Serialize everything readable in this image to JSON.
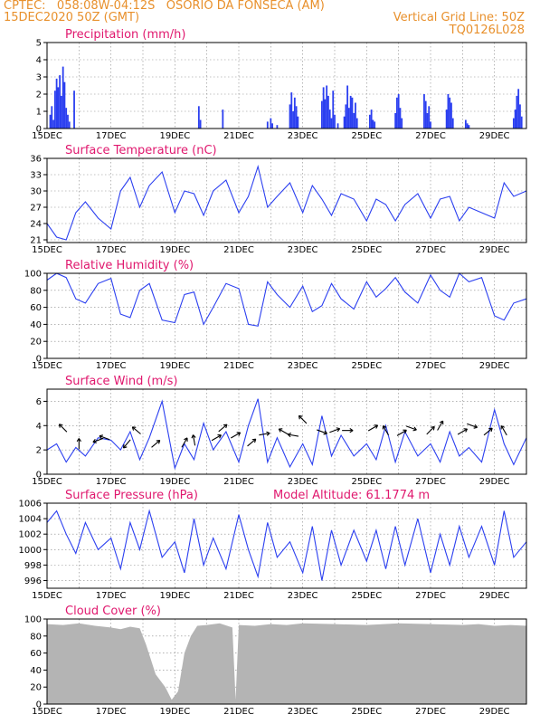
{
  "header": {
    "line1_left": "CPTEC:   058:08W-04:12S   OSORIO DA FONSECA (AM)",
    "line2_left": "15DEC2020 50Z (GMT)",
    "line2_right": "Vertical Grid Line: 50Z",
    "line3_right": "TQ0126L028"
  },
  "model_altitude": "Model Altitude: 61.1774 m",
  "colors": {
    "header": "#e8902c",
    "title": "#e0186e",
    "series": "#2b3ff0",
    "cloud": "#b4b4b4"
  },
  "x_axis": {
    "labels": [
      "15DEC",
      "17DEC",
      "19DEC",
      "21DEC",
      "23DEC",
      "25DEC",
      "27DEC",
      "29DEC"
    ],
    "range_days": [
      15,
      30
    ],
    "grid_interval_days": 1
  },
  "chart_data": [
    {
      "type": "bar",
      "title": "Precipitation (mm/h)",
      "ylim": [
        0,
        5
      ],
      "yticks": [
        "0",
        "1",
        "2",
        "3",
        "4",
        "5"
      ],
      "x": [
        15.1,
        15.15,
        15.2,
        15.25,
        15.3,
        15.35,
        15.4,
        15.45,
        15.5,
        15.55,
        15.6,
        15.65,
        15.7,
        15.85,
        19.75,
        19.8,
        20.5,
        21.9,
        22.0,
        22.05,
        22.2,
        22.6,
        22.65,
        22.7,
        22.75,
        22.8,
        22.85,
        23.6,
        23.65,
        23.7,
        23.75,
        23.8,
        23.85,
        23.9,
        23.95,
        24.0,
        24.1,
        24.3,
        24.35,
        24.4,
        24.45,
        24.5,
        24.55,
        24.6,
        24.65,
        24.7,
        25.1,
        25.15,
        25.2,
        25.25,
        25.9,
        25.95,
        26.0,
        26.05,
        26.1,
        26.8,
        26.85,
        26.9,
        26.95,
        27.0,
        27.5,
        27.55,
        27.6,
        27.65,
        27.7,
        28.1,
        28.15,
        28.2,
        29.6,
        29.65,
        29.7,
        29.75,
        29.8,
        29.85
      ],
      "values": [
        0.8,
        1.3,
        0.5,
        2.2,
        2.9,
        2.4,
        3.1,
        1.9,
        3.6,
        2.7,
        1.2,
        0.8,
        0.4,
        2.2,
        1.3,
        0.5,
        1.1,
        0.4,
        0.6,
        0.3,
        0.2,
        1.4,
        2.1,
        1.0,
        1.8,
        1.3,
        0.7,
        1.6,
        2.4,
        1.7,
        2.5,
        1.9,
        1.1,
        0.6,
        2.2,
        0.8,
        0.3,
        0.7,
        1.4,
        2.5,
        1.2,
        1.9,
        1.8,
        0.9,
        1.5,
        0.6,
        0.8,
        1.1,
        0.5,
        0.4,
        0.9,
        1.8,
        2.0,
        1.2,
        0.6,
        2.0,
        1.6,
        0.9,
        1.3,
        0.4,
        1.1,
        2.0,
        1.8,
        1.5,
        0.6,
        0.5,
        0.3,
        0.2,
        0.6,
        1.1,
        1.9,
        2.3,
        1.4,
        0.7
      ]
    },
    {
      "type": "line",
      "title": "Surface Temperature (nC)",
      "ylim": [
        20.5,
        36
      ],
      "yticks": [
        "21",
        "24",
        "27",
        "30",
        "33",
        "36"
      ],
      "x": [
        15.0,
        15.3,
        15.6,
        15.9,
        16.2,
        16.6,
        17.0,
        17.3,
        17.6,
        17.9,
        18.2,
        18.6,
        19.0,
        19.3,
        19.6,
        19.9,
        20.2,
        20.6,
        21.0,
        21.3,
        21.6,
        21.9,
        22.2,
        22.6,
        23.0,
        23.3,
        23.6,
        23.9,
        24.2,
        24.6,
        25.0,
        25.3,
        25.6,
        25.9,
        26.2,
        26.6,
        27.0,
        27.3,
        27.6,
        27.9,
        28.2,
        28.6,
        29.0,
        29.3,
        29.6,
        30.0
      ],
      "values": [
        24,
        21.5,
        21,
        26,
        28,
        25,
        23,
        30,
        32.5,
        27,
        31,
        33.5,
        26,
        30,
        29.5,
        25.5,
        30,
        32,
        26,
        29,
        34.5,
        27,
        29,
        31.5,
        26,
        31,
        28.5,
        25.5,
        29.5,
        28.5,
        24.5,
        28.5,
        27.5,
        24.5,
        27.5,
        29.5,
        25,
        28.5,
        29,
        24.5,
        27,
        26,
        25,
        31.5,
        29,
        30
      ]
    },
    {
      "type": "line",
      "title": "Relative Humidity (%)",
      "ylim": [
        0,
        100
      ],
      "yticks": [
        "0",
        "20",
        "40",
        "60",
        "80",
        "100"
      ],
      "x": [
        15.0,
        15.3,
        15.6,
        15.9,
        16.2,
        16.6,
        17.0,
        17.3,
        17.6,
        17.9,
        18.2,
        18.6,
        19.0,
        19.3,
        19.6,
        19.9,
        20.2,
        20.6,
        21.0,
        21.3,
        21.6,
        21.9,
        22.2,
        22.6,
        23.0,
        23.3,
        23.6,
        23.9,
        24.2,
        24.6,
        25.0,
        25.3,
        25.6,
        25.9,
        26.2,
        26.6,
        27.0,
        27.3,
        27.6,
        27.9,
        28.2,
        28.6,
        29.0,
        29.3,
        29.6,
        30.0
      ],
      "values": [
        92,
        100,
        95,
        70,
        65,
        88,
        94,
        52,
        48,
        80,
        88,
        45,
        42,
        75,
        78,
        40,
        60,
        88,
        82,
        40,
        38,
        90,
        75,
        60,
        85,
        55,
        62,
        88,
        70,
        58,
        90,
        72,
        82,
        95,
        78,
        65,
        98,
        80,
        72,
        100,
        90,
        95,
        50,
        45,
        65,
        70
      ]
    },
    {
      "type": "line",
      "title": "Surface Wind (m/s)",
      "ylim": [
        0,
        7
      ],
      "yticks": [
        "0",
        "2",
        "4",
        "6"
      ],
      "x": [
        15.0,
        15.3,
        15.6,
        15.9,
        16.2,
        16.6,
        17.0,
        17.3,
        17.6,
        17.9,
        18.2,
        18.6,
        19.0,
        19.3,
        19.6,
        19.9,
        20.2,
        20.6,
        21.0,
        21.3,
        21.6,
        21.9,
        22.2,
        22.6,
        23.0,
        23.3,
        23.6,
        23.9,
        24.2,
        24.6,
        25.0,
        25.3,
        25.6,
        25.9,
        26.2,
        26.6,
        27.0,
        27.3,
        27.6,
        27.9,
        28.2,
        28.6,
        29.0,
        29.3,
        29.6,
        30.0
      ],
      "values": [
        2,
        2.5,
        1,
        2.2,
        1.5,
        3,
        2.8,
        2,
        3.5,
        1.2,
        3,
        6,
        0.5,
        2.5,
        1.2,
        4.2,
        2,
        3.5,
        1,
        4,
        6.2,
        1,
        3,
        0.6,
        2.5,
        0.8,
        4.8,
        1.5,
        3.2,
        1.5,
        2.5,
        1.2,
        4,
        1,
        3.5,
        1.5,
        2.5,
        1,
        3.5,
        1.5,
        2.2,
        1,
        5.3,
        2.5,
        0.8,
        3
      ]
    },
    {
      "type": "line",
      "title": "Surface Pressure (hPa)",
      "ylim": [
        995,
        1006
      ],
      "yticks": [
        "996",
        "998",
        "1000",
        "1002",
        "1004",
        "1006"
      ],
      "x": [
        15.0,
        15.3,
        15.6,
        15.9,
        16.2,
        16.6,
        17.0,
        17.3,
        17.6,
        17.9,
        18.2,
        18.6,
        19.0,
        19.3,
        19.6,
        19.9,
        20.2,
        20.6,
        21.0,
        21.3,
        21.6,
        21.9,
        22.2,
        22.6,
        23.0,
        23.3,
        23.6,
        23.9,
        24.2,
        24.6,
        25.0,
        25.3,
        25.6,
        25.9,
        26.2,
        26.6,
        27.0,
        27.3,
        27.6,
        27.9,
        28.2,
        28.6,
        29.0,
        29.3,
        29.6,
        30.0
      ],
      "values": [
        1003.5,
        1005,
        1002,
        999.5,
        1003.5,
        1000,
        1001.5,
        997.5,
        1003.5,
        1000,
        1005,
        999,
        1001,
        997,
        1004,
        998,
        1001.5,
        997.5,
        1004.5,
        1000,
        996.5,
        1003.5,
        999,
        1001,
        997,
        1003,
        996,
        1002.5,
        998,
        1002.5,
        998.5,
        1002.5,
        997.5,
        1003,
        998,
        1004,
        997,
        1002,
        998,
        1003,
        999,
        1003,
        998,
        1005,
        999,
        1001
      ]
    },
    {
      "type": "area",
      "title": "Cloud Cover (%)",
      "ylim": [
        0,
        100
      ],
      "yticks": [
        "0",
        "20",
        "40",
        "60",
        "80",
        "100"
      ],
      "x": [
        15.0,
        15.5,
        16.0,
        16.5,
        17.0,
        17.3,
        17.6,
        17.9,
        18.1,
        18.4,
        18.7,
        18.9,
        19.1,
        19.3,
        19.5,
        19.7,
        20.0,
        20.4,
        20.8,
        20.9,
        21.0,
        21.5,
        22.0,
        22.5,
        23.0,
        24.0,
        25.0,
        26.0,
        27.0,
        28.0,
        28.5,
        29.0,
        29.5,
        30.0
      ],
      "values": [
        94,
        93,
        95,
        92,
        90,
        88,
        91,
        89,
        70,
        35,
        20,
        5,
        15,
        60,
        80,
        92,
        93,
        95,
        90,
        5,
        93,
        92,
        94,
        93,
        95,
        94,
        93,
        95,
        94,
        93,
        94,
        92,
        93,
        92
      ]
    }
  ],
  "wind_arrows": [
    {
      "day": 15.5,
      "value": 3.8,
      "dir_deg": 135
    },
    {
      "day": 16.0,
      "value": 2.5,
      "dir_deg": 90
    },
    {
      "day": 16.6,
      "value": 2.8,
      "dir_deg": 200
    },
    {
      "day": 16.8,
      "value": 3.0,
      "dir_deg": 160
    },
    {
      "day": 17.5,
      "value": 2.5,
      "dir_deg": 230
    },
    {
      "day": 17.8,
      "value": 3.6,
      "dir_deg": 140
    },
    {
      "day": 18.4,
      "value": 2.5,
      "dir_deg": 40
    },
    {
      "day": 19.3,
      "value": 2.6,
      "dir_deg": 60
    },
    {
      "day": 19.6,
      "value": 2.8,
      "dir_deg": 100
    },
    {
      "day": 20.3,
      "value": 3.0,
      "dir_deg": 30
    },
    {
      "day": 20.5,
      "value": 3.8,
      "dir_deg": 40
    },
    {
      "day": 20.9,
      "value": 3.2,
      "dir_deg": 30
    },
    {
      "day": 21.4,
      "value": 2.6,
      "dir_deg": 40
    },
    {
      "day": 21.8,
      "value": 3.3,
      "dir_deg": 10
    },
    {
      "day": 22.4,
      "value": 3.5,
      "dir_deg": 150
    },
    {
      "day": 22.7,
      "value": 3.2,
      "dir_deg": 170
    },
    {
      "day": 23.0,
      "value": 4.5,
      "dir_deg": 135
    },
    {
      "day": 23.6,
      "value": 3.5,
      "dir_deg": 340
    },
    {
      "day": 24.0,
      "value": 3.6,
      "dir_deg": 20
    },
    {
      "day": 24.4,
      "value": 3.6,
      "dir_deg": 0
    },
    {
      "day": 25.2,
      "value": 3.8,
      "dir_deg": 30
    },
    {
      "day": 25.6,
      "value": 3.6,
      "dir_deg": 120
    },
    {
      "day": 26.1,
      "value": 3.4,
      "dir_deg": 30
    },
    {
      "day": 26.4,
      "value": 3.8,
      "dir_deg": 340
    },
    {
      "day": 27.0,
      "value": 3.6,
      "dir_deg": 45
    },
    {
      "day": 27.3,
      "value": 4.0,
      "dir_deg": 60
    },
    {
      "day": 28.0,
      "value": 3.5,
      "dir_deg": 30
    },
    {
      "day": 28.3,
      "value": 4.0,
      "dir_deg": 340
    },
    {
      "day": 28.8,
      "value": 3.5,
      "dir_deg": 40
    },
    {
      "day": 29.3,
      "value": 3.6,
      "dir_deg": 120
    }
  ]
}
